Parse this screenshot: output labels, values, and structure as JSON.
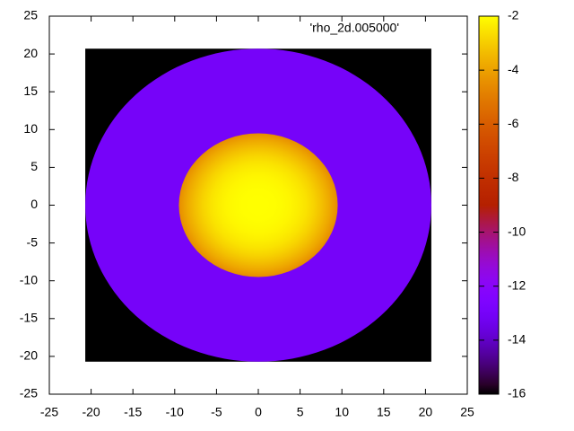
{
  "chart_data": {
    "type": "heatmap",
    "key": "'rho_2d.005000'",
    "palette": "gnuplot",
    "xlim": [
      -25,
      25
    ],
    "xticks": [
      -25,
      -20,
      -15,
      -10,
      -5,
      0,
      5,
      10,
      15,
      20,
      25
    ],
    "ylim": [
      -25,
      25
    ],
    "yticks": [
      -25,
      -20,
      -15,
      -10,
      -5,
      0,
      5,
      10,
      15,
      20,
      25
    ],
    "cblim": [
      -16,
      -2
    ],
    "cbticks": [
      -16,
      -14,
      -12,
      -10,
      -8,
      -6,
      -4,
      -2
    ],
    "regions": [
      {
        "shape": "square",
        "half_width": 20.7,
        "center_value": -16,
        "edge_value": -16
      },
      {
        "shape": "circle",
        "radius": 20.7,
        "center_value": -13,
        "edge_value": -13
      },
      {
        "shape": "circle",
        "radius": 9.5,
        "center_value": -2,
        "edge_value": -4.5
      }
    ]
  }
}
